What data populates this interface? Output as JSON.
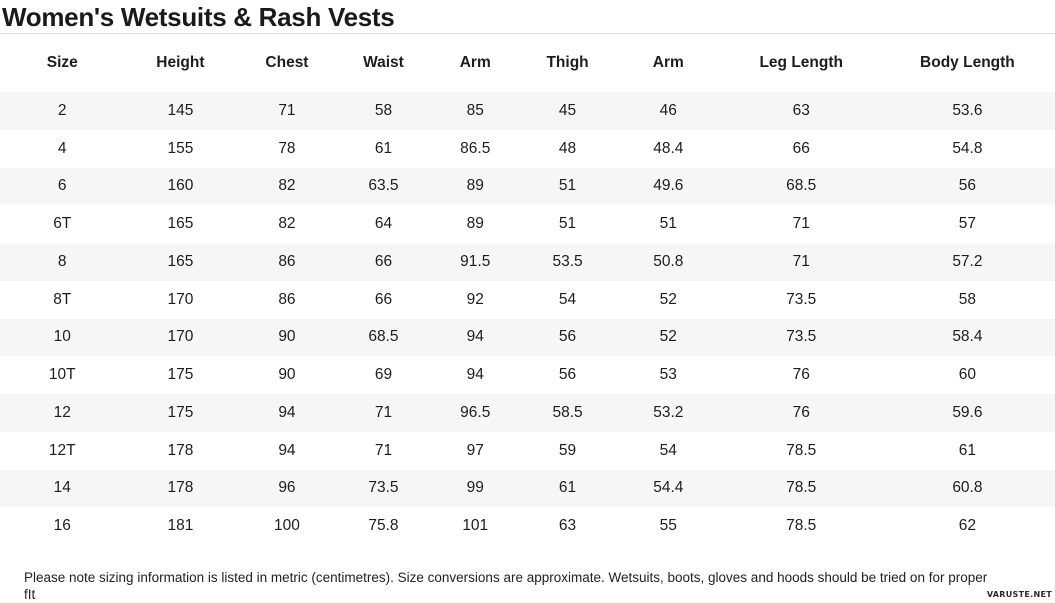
{
  "title": "Women's Wetsuits & Rash Vests",
  "chart_data": {
    "type": "table",
    "title": "Women's Wetsuits & Rash Vests",
    "columns": [
      "Size",
      "Height",
      "Chest",
      "Waist",
      "Arm",
      "Thigh",
      "Arm",
      "Leg Length",
      "Body Length"
    ],
    "rows": [
      [
        "2",
        "145",
        "71",
        "58",
        "85",
        "45",
        "46",
        "63",
        "53.6"
      ],
      [
        "4",
        "155",
        "78",
        "61",
        "86.5",
        "48",
        "48.4",
        "66",
        "54.8"
      ],
      [
        "6",
        "160",
        "82",
        "63.5",
        "89",
        "51",
        "49.6",
        "68.5",
        "56"
      ],
      [
        "6T",
        "165",
        "82",
        "64",
        "89",
        "51",
        "51",
        "71",
        "57"
      ],
      [
        "8",
        "165",
        "86",
        "66",
        "91.5",
        "53.5",
        "50.8",
        "71",
        "57.2"
      ],
      [
        "8T",
        "170",
        "86",
        "66",
        "92",
        "54",
        "52",
        "73.5",
        "58"
      ],
      [
        "10",
        "170",
        "90",
        "68.5",
        "94",
        "56",
        "52",
        "73.5",
        "58.4"
      ],
      [
        "10T",
        "175",
        "90",
        "69",
        "94",
        "56",
        "53",
        "76",
        "60"
      ],
      [
        "12",
        "175",
        "94",
        "71",
        "96.5",
        "58.5",
        "53.2",
        "76",
        "59.6"
      ],
      [
        "12T",
        "178",
        "94",
        "71",
        "97",
        "59",
        "54",
        "78.5",
        "61"
      ],
      [
        "14",
        "178",
        "96",
        "73.5",
        "99",
        "61",
        "54.4",
        "78.5",
        "60.8"
      ],
      [
        "16",
        "181",
        "100",
        "75.8",
        "101",
        "63",
        "55",
        "78.5",
        "62"
      ]
    ],
    "units": "centimetres",
    "layout": {
      "striped_rows": "odd",
      "stripe_color": "#f6f6f6",
      "text_color": "#1d1d1f",
      "grid": false
    }
  },
  "footer": {
    "note_lines": [
      "Please note sizing information is listed in metric (centimetres). Size conversions are approximate. Wetsuits, boots, gloves and hoods should be tried on for proper",
      "fIt"
    ]
  },
  "watermark": "VARUSTE.NET"
}
